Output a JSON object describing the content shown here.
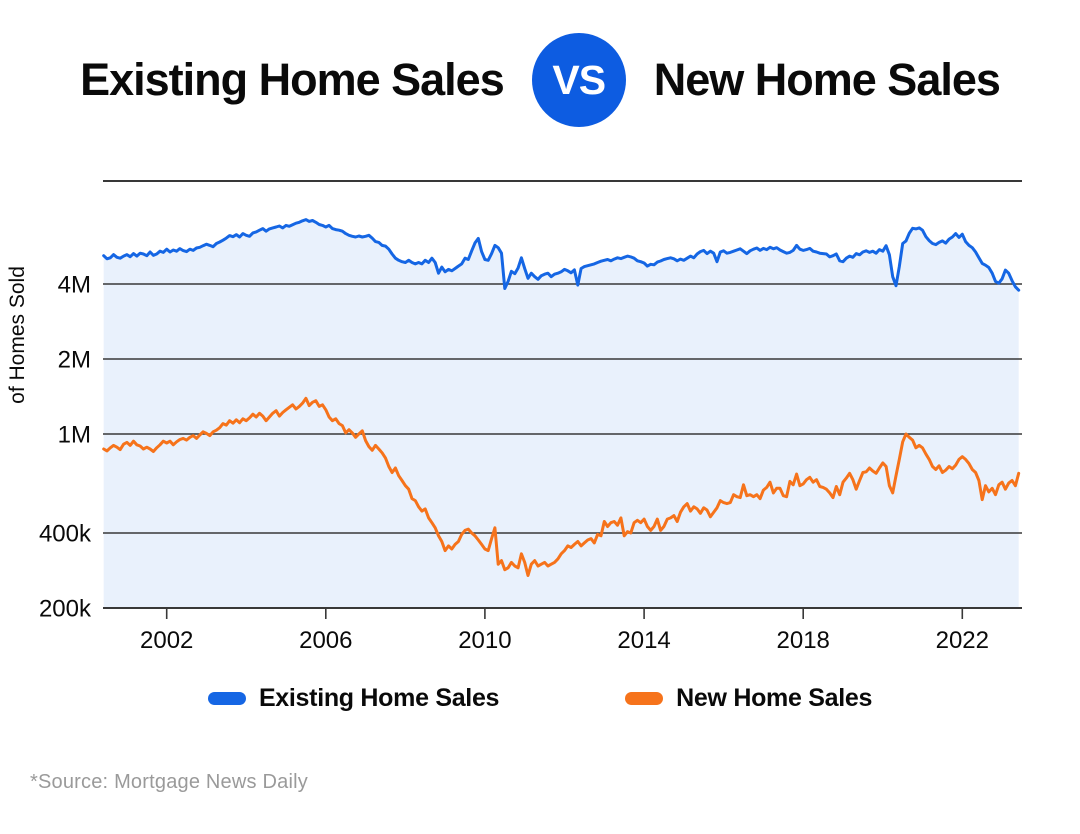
{
  "header": {
    "left_title": "Existing Home Sales",
    "vs_label": "VS",
    "right_title": "New Home Sales"
  },
  "legend": {
    "items": [
      {
        "label": "Existing Home Sales",
        "color": "#1566E4"
      },
      {
        "label": "New Home Sales",
        "color": "#F6731B"
      }
    ]
  },
  "footer": {
    "source": "*Source: Mortgage News Daily"
  },
  "colors": {
    "accent_blue": "#0D5CE1",
    "line_blue": "#1566E4",
    "line_orange": "#F6731B",
    "area_fill": "#E9F1FC",
    "grid": "#383838",
    "axis_text": "#0a0a0a",
    "muted_text": "#9A9A9A"
  },
  "chart_data": {
    "type": "line",
    "title": "Existing Home Sales vs New Home Sales",
    "y_axis_label": "of Homes Sold",
    "y_scale": "log",
    "grid": true,
    "legend_position": "bottom",
    "x_start": 2000.4167,
    "x_step": 0.0833333,
    "x_range": [
      2000.4,
      2023.5
    ],
    "y_bottom": 200000,
    "y_ticks": [
      {
        "value": 4000000,
        "label": "4M"
      },
      {
        "value": 2000000,
        "label": "2M"
      },
      {
        "value": 1000000,
        "label": "1M"
      },
      {
        "value": 400000,
        "label": "400k"
      },
      {
        "value": 200000,
        "label": "200k"
      }
    ],
    "x_ticks": [
      2002,
      2006,
      2010,
      2014,
      2018,
      2022
    ],
    "series": [
      {
        "name": "Existing Home Sales",
        "unit": "millions",
        "color": "#1566E4",
        "fill": true,
        "values": [
          5.2,
          5.05,
          5.1,
          5.25,
          5.12,
          5.08,
          5.18,
          5.25,
          5.15,
          5.3,
          5.18,
          5.32,
          5.28,
          5.2,
          5.38,
          5.22,
          5.28,
          5.42,
          5.36,
          5.52,
          5.38,
          5.48,
          5.42,
          5.55,
          5.45,
          5.4,
          5.52,
          5.46,
          5.58,
          5.62,
          5.7,
          5.78,
          5.72,
          5.65,
          5.82,
          5.9,
          6.0,
          6.12,
          6.26,
          6.2,
          6.32,
          6.18,
          6.38,
          6.28,
          6.22,
          6.42,
          6.48,
          6.58,
          6.68,
          6.52,
          6.66,
          6.72,
          6.78,
          6.84,
          6.72,
          6.88,
          6.82,
          6.92,
          7.02,
          7.08,
          7.18,
          7.26,
          7.14,
          7.2,
          7.08,
          6.94,
          6.88,
          6.78,
          6.88,
          6.68,
          6.62,
          6.58,
          6.52,
          6.38,
          6.28,
          6.22,
          6.18,
          6.24,
          6.18,
          6.22,
          6.28,
          6.12,
          5.92,
          5.88,
          5.72,
          5.68,
          5.52,
          5.28,
          5.08,
          4.98,
          4.92,
          4.88,
          4.98,
          4.88,
          4.82,
          4.88,
          4.82,
          4.98,
          4.88,
          5.08,
          4.88,
          4.42,
          4.68,
          4.48,
          4.58,
          4.52,
          4.62,
          4.72,
          4.82,
          5.08,
          5.02,
          5.44,
          5.85,
          6.1,
          5.4,
          5.02,
          4.98,
          5.3,
          5.72,
          5.6,
          5.32,
          3.84,
          4.1,
          4.5,
          4.4,
          4.64,
          5.1,
          4.62,
          4.22,
          4.42,
          4.28,
          4.18,
          4.32,
          4.38,
          4.42,
          4.28,
          4.38,
          4.42,
          4.48,
          4.58,
          4.52,
          4.44,
          4.56,
          3.96,
          4.62,
          4.7,
          4.74,
          4.78,
          4.82,
          4.88,
          4.94,
          4.98,
          5.02,
          4.96,
          5.04,
          5.1,
          5.06,
          5.12,
          5.18,
          5.14,
          5.08,
          4.96,
          4.92,
          4.86,
          4.72,
          4.8,
          4.78,
          4.9,
          4.95,
          5.02,
          5.06,
          5.1,
          5.05,
          4.96,
          5.04,
          4.98,
          5.08,
          5.18,
          5.1,
          5.28,
          5.4,
          5.46,
          5.3,
          5.42,
          5.32,
          4.92,
          5.38,
          5.44,
          5.32,
          5.36,
          5.42,
          5.48,
          5.54,
          5.42,
          5.3,
          5.44,
          5.52,
          5.58,
          5.46,
          5.56,
          5.5,
          5.62,
          5.54,
          5.6,
          5.48,
          5.4,
          5.32,
          5.36,
          5.46,
          5.72,
          5.52,
          5.46,
          5.5,
          5.56,
          5.42,
          5.38,
          5.32,
          5.3,
          5.28,
          5.14,
          5.2,
          5.28,
          4.96,
          4.92,
          5.08,
          5.18,
          5.12,
          5.3,
          5.24,
          5.38,
          5.44,
          5.36,
          5.42,
          5.32,
          5.5,
          5.42,
          5.7,
          5.24,
          4.28,
          3.94,
          4.7,
          5.82,
          5.96,
          6.4,
          6.7,
          6.66,
          6.72,
          6.58,
          6.2,
          5.98,
          5.82,
          5.76,
          5.88,
          5.96,
          5.84,
          6.06,
          6.18,
          6.38,
          6.16,
          6.34,
          5.92,
          5.72,
          5.6,
          5.38,
          5.1,
          4.84,
          4.76,
          4.66,
          4.42,
          4.1,
          4.03,
          4.2,
          4.55,
          4.42,
          4.12,
          3.9,
          3.78
        ]
      },
      {
        "name": "New Home Sales",
        "unit": "thousands",
        "color": "#F6731B",
        "fill": false,
        "values": [
          870,
          855,
          880,
          900,
          885,
          865,
          910,
          925,
          900,
          935,
          905,
          895,
          870,
          885,
          870,
          850,
          880,
          905,
          935,
          920,
          935,
          905,
          930,
          950,
          960,
          945,
          970,
          985,
          960,
          990,
          1020,
          1005,
          985,
          1020,
          1035,
          1060,
          1100,
          1085,
          1130,
          1105,
          1140,
          1110,
          1150,
          1130,
          1160,
          1200,
          1170,
          1210,
          1180,
          1130,
          1170,
          1210,
          1240,
          1180,
          1220,
          1250,
          1280,
          1310,
          1260,
          1290,
          1330,
          1390,
          1300,
          1340,
          1360,
          1290,
          1310,
          1250,
          1170,
          1130,
          1150,
          1100,
          1080,
          1010,
          1040,
          1010,
          970,
          1000,
          1030,
          940,
          890,
          860,
          900,
          870,
          840,
          800,
          740,
          700,
          730,
          680,
          650,
          620,
          600,
          550,
          540,
          510,
          490,
          500,
          460,
          440,
          420,
          390,
          370,
          340,
          355,
          345,
          360,
          370,
          395,
          410,
          415,
          400,
          390,
          375,
          360,
          345,
          340,
          380,
          420,
          300,
          310,
          285,
          290,
          305,
          295,
          290,
          330,
          305,
          270,
          300,
          310,
          295,
          300,
          305,
          295,
          300,
          305,
          315,
          330,
          340,
          355,
          350,
          360,
          370,
          355,
          365,
          375,
          380,
          365,
          395,
          390,
          445,
          425,
          440,
          445,
          430,
          460,
          390,
          405,
          400,
          440,
          450,
          440,
          455,
          425,
          410,
          425,
          455,
          410,
          425,
          455,
          460,
          470,
          445,
          485,
          510,
          525,
          490,
          510,
          500,
          480,
          505,
          495,
          465,
          485,
          505,
          540,
          530,
          525,
          530,
          570,
          560,
          555,
          625,
          565,
          570,
          560,
          570,
          550,
          595,
          610,
          640,
          580,
          605,
          605,
          565,
          560,
          645,
          625,
          690,
          620,
          630,
          655,
          670,
          640,
          655,
          615,
          610,
          600,
          580,
          555,
          615,
          570,
          640,
          665,
          695,
          655,
          600,
          650,
          700,
          705,
          730,
          710,
          695,
          730,
          765,
          740,
          620,
          580,
          680,
          790,
          930,
          1000,
          970,
          945,
          880,
          900,
          880,
          830,
          790,
          740,
          720,
          745,
          700,
          715,
          740,
          725,
          750,
          790,
          810,
          790,
          760,
          720,
          700,
          650,
          545,
          620,
          585,
          605,
          570,
          625,
          640,
          600,
          635,
          650,
          620,
          695
        ]
      }
    ]
  }
}
